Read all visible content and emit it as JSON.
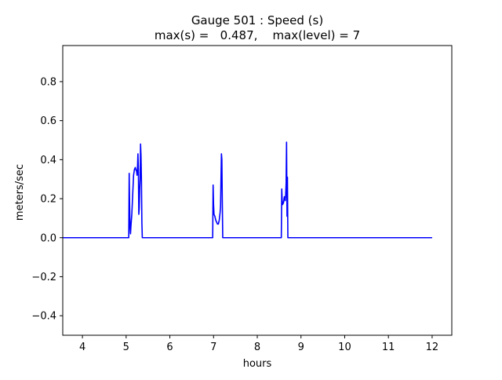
{
  "chart_data": {
    "type": "line",
    "title": "Gauge 501 : Speed (s)",
    "subtitle": "max(s) =   0.487,    max(level) = 7",
    "xlabel": "hours",
    "ylabel": "meters/sec",
    "xlim": [
      3.55,
      12.45
    ],
    "ylim": [
      -0.5,
      0.985
    ],
    "xticks": [
      4,
      5,
      6,
      7,
      8,
      9,
      10,
      11,
      12
    ],
    "xtick_labels": [
      "4",
      "5",
      "6",
      "7",
      "8",
      "9",
      "10",
      "11",
      "12"
    ],
    "yticks": [
      -0.4,
      -0.2,
      0.0,
      0.2,
      0.4,
      0.6,
      0.8
    ],
    "ytick_labels": [
      "−0.4",
      "−0.2",
      "0.0",
      "0.2",
      "0.4",
      "0.6",
      "0.8"
    ],
    "grid": false,
    "legend": "none",
    "series": [
      {
        "color": "#0000ff",
        "points": [
          [
            3.55,
            0.0
          ],
          [
            5.06,
            0.0
          ],
          [
            5.07,
            0.33
          ],
          [
            5.08,
            0.16
          ],
          [
            5.09,
            0.05
          ],
          [
            5.1,
            0.02
          ],
          [
            5.11,
            0.06
          ],
          [
            5.13,
            0.12
          ],
          [
            5.15,
            0.22
          ],
          [
            5.17,
            0.32
          ],
          [
            5.19,
            0.35
          ],
          [
            5.21,
            0.36
          ],
          [
            5.22,
            0.35
          ],
          [
            5.24,
            0.34
          ],
          [
            5.25,
            0.32
          ],
          [
            5.26,
            0.36
          ],
          [
            5.27,
            0.43
          ],
          [
            5.28,
            0.35
          ],
          [
            5.29,
            0.12
          ],
          [
            5.3,
            0.15
          ],
          [
            5.31,
            0.25
          ],
          [
            5.32,
            0.3
          ],
          [
            5.33,
            0.48
          ],
          [
            5.34,
            0.42
          ],
          [
            5.35,
            0.3
          ],
          [
            5.36,
            0.08
          ],
          [
            5.37,
            0.0
          ],
          [
            6.98,
            0.0
          ],
          [
            6.99,
            0.27
          ],
          [
            7.0,
            0.17
          ],
          [
            7.01,
            0.12
          ],
          [
            7.03,
            0.11
          ],
          [
            7.05,
            0.09
          ],
          [
            7.07,
            0.08
          ],
          [
            7.09,
            0.07
          ],
          [
            7.11,
            0.07
          ],
          [
            7.13,
            0.09
          ],
          [
            7.15,
            0.13
          ],
          [
            7.16,
            0.16
          ],
          [
            7.17,
            0.3
          ],
          [
            7.18,
            0.43
          ],
          [
            7.19,
            0.4
          ],
          [
            7.2,
            0.18
          ],
          [
            7.21,
            0.0
          ],
          [
            8.55,
            0.0
          ],
          [
            8.56,
            0.25
          ],
          [
            8.57,
            0.19
          ],
          [
            8.58,
            0.17
          ],
          [
            8.6,
            0.18
          ],
          [
            8.62,
            0.21
          ],
          [
            8.64,
            0.19
          ],
          [
            8.65,
            0.22
          ],
          [
            8.66,
            0.28
          ],
          [
            8.67,
            0.49
          ],
          [
            8.68,
            0.11
          ],
          [
            8.69,
            0.31
          ],
          [
            8.7,
            0.0
          ],
          [
            12.0,
            0.0
          ]
        ]
      }
    ]
  }
}
